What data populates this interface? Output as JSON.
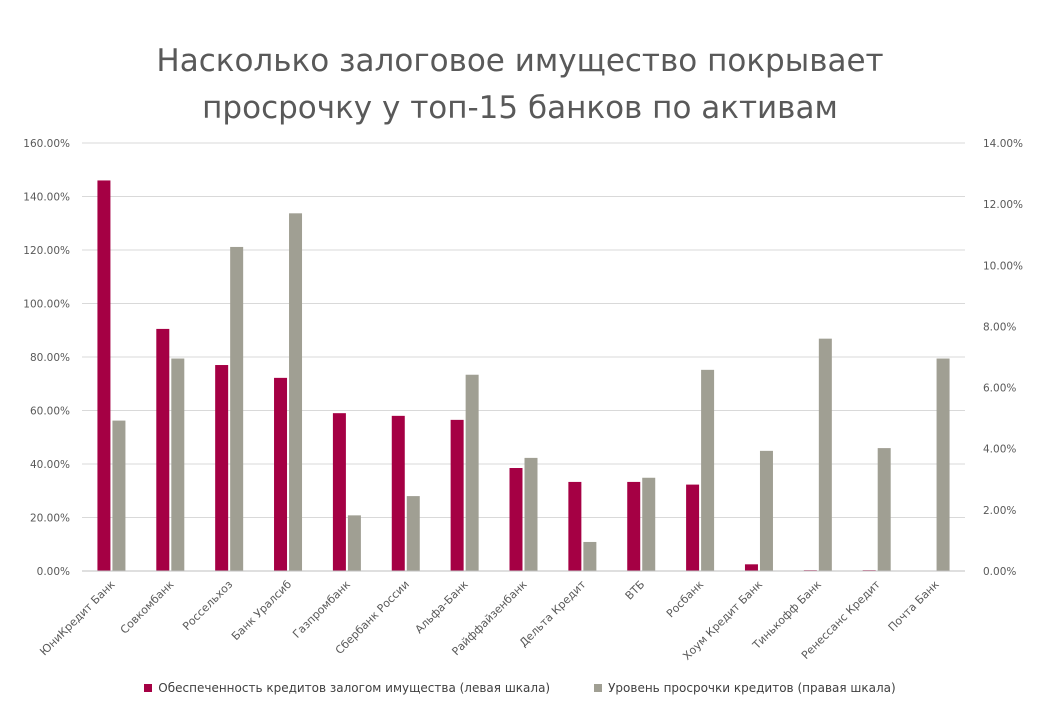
{
  "chart_data": {
    "type": "bar",
    "title_lines": [
      "Насколько залоговое имущество покрывает",
      "просрочку у топ-15 банков по активам"
    ],
    "categories": [
      "ЮниКредит Банк",
      "Совкомбанк",
      "Россельхоз",
      "Банк Уралсиб",
      "Газпромбанк",
      "Сбербанк России",
      "Альфа-Банк",
      "Райффайзенбанк",
      "Дельта Кредит",
      "ВТБ",
      "Росбанк",
      "Хоум Кредит Банк",
      "Тинькофф Банк",
      "Ренессанс Кредит",
      "Почта Банк"
    ],
    "series": [
      {
        "name": "Обеспеченность кредитов залогом имущества (левая шкала)",
        "axis": "left",
        "color": "#A50044",
        "values": [
          146,
          90.5,
          77,
          72.2,
          59,
          58,
          56.5,
          38.5,
          33.3,
          33.3,
          32.3,
          2.5,
          0.3,
          0.3,
          0
        ]
      },
      {
        "name": "Уровень просрочки кредитов (правая шкала)",
        "axis": "right",
        "color": "#A09F93",
        "values": [
          4.92,
          6.95,
          10.6,
          11.7,
          1.82,
          2.45,
          6.42,
          3.7,
          0.95,
          3.05,
          6.58,
          3.93,
          7.6,
          4.02,
          6.95
        ]
      }
    ],
    "y_left": {
      "min": 0,
      "max": 160,
      "step": 20,
      "ticks": [
        "0.00%",
        "20.00%",
        "40.00%",
        "60.00%",
        "80.00%",
        "100.00%",
        "120.00%",
        "140.00%",
        "160.00%"
      ]
    },
    "y_right": {
      "min": 0,
      "max": 14,
      "step": 2,
      "ticks": [
        "0.00%",
        "2.00%",
        "4.00%",
        "6.00%",
        "8.00%",
        "10.00%",
        "12.00%",
        "14.00%"
      ]
    },
    "grid": true,
    "legend_position": "bottom"
  }
}
